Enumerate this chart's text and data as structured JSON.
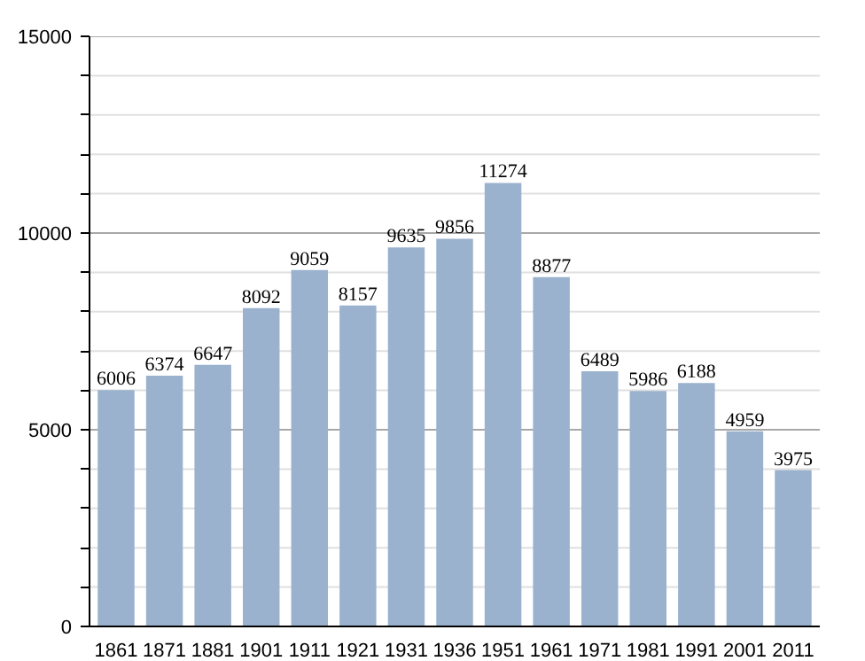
{
  "chart_data": {
    "type": "bar",
    "categories": [
      "1861",
      "1871",
      "1881",
      "1901",
      "1911",
      "1921",
      "1931",
      "1936",
      "1951",
      "1961",
      "1971",
      "1981",
      "1991",
      "2001",
      "2011"
    ],
    "values": [
      6006,
      6374,
      6647,
      8092,
      9059,
      8157,
      9635,
      9856,
      11274,
      8877,
      6489,
      5986,
      6188,
      4959,
      3975
    ],
    "color": "#9ab2cd",
    "ylim": [
      0,
      15000
    ],
    "yticks": [
      0,
      {
        "value": 1000,
        "label": null
      },
      {
        "value": 2000,
        "label": null
      },
      {
        "value": 3000,
        "label": null
      },
      {
        "value": 4000,
        "label": null
      },
      5000,
      {
        "value": 6000,
        "label": null
      },
      {
        "value": 7000,
        "label": null
      },
      {
        "value": 8000,
        "label": null
      },
      {
        "value": 9000,
        "label": null
      },
      10000,
      {
        "value": 11000,
        "label": null
      },
      {
        "value": 12000,
        "label": null
      },
      {
        "value": 13000,
        "label": null
      },
      {
        "value": 14000,
        "label": null
      },
      15000
    ],
    "grid": "y",
    "data_labels": true
  }
}
